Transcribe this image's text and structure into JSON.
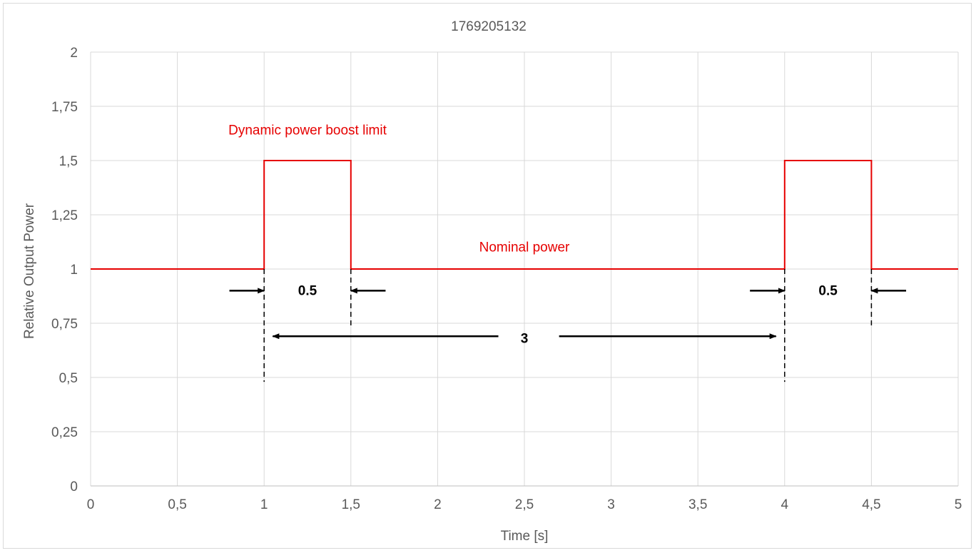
{
  "chart_data": {
    "type": "line",
    "title": "1769205132",
    "xlabel": "Time [s]",
    "ylabel": "Relative Output Power",
    "xlim": [
      0,
      5
    ],
    "ylim": [
      0,
      2
    ],
    "x_ticks": [
      0,
      0.5,
      1,
      1.5,
      2,
      2.5,
      3,
      3.5,
      4,
      4.5,
      5
    ],
    "x_tick_labels": [
      "0",
      "0,5",
      "1",
      "1,5",
      "2",
      "2,5",
      "3",
      "3,5",
      "4",
      "4,5",
      "5"
    ],
    "y_ticks": [
      0,
      0.25,
      0.5,
      0.75,
      1,
      1.25,
      1.5,
      1.75,
      2
    ],
    "y_tick_labels": [
      "0",
      "0,25",
      "0,5",
      "0,75",
      "1",
      "1,25",
      "1,5",
      "1,75",
      "2"
    ],
    "grid": true,
    "series": [
      {
        "color": "#e60000",
        "x": [
          0,
          1,
          1,
          1.5,
          1.5,
          4,
          4,
          4.5,
          4.5,
          5
        ],
        "y": [
          1,
          1,
          1.5,
          1.5,
          1,
          1,
          1.5,
          1.5,
          1,
          1
        ]
      }
    ],
    "annotations": {
      "labels": [
        {
          "text": "Dynamic power boost limit",
          "x": 1.25,
          "y": 1.62,
          "style": "red"
        },
        {
          "text": "Nominal power",
          "x": 2.5,
          "y": 1.08,
          "style": "red"
        },
        {
          "text": "0.5",
          "x": 1.25,
          "y": 0.88,
          "style": "bold"
        },
        {
          "text": "0.5",
          "x": 4.25,
          "y": 0.88,
          "style": "bold"
        },
        {
          "text": "3",
          "x": 2.5,
          "y": 0.66,
          "style": "bold"
        }
      ],
      "dashed_lines": [
        {
          "x": 1,
          "y1": 1,
          "y2": 0.48
        },
        {
          "x": 1.5,
          "y1": 1,
          "y2": 0.74
        },
        {
          "x": 4,
          "y1": 1,
          "y2": 0.48
        },
        {
          "x": 4.5,
          "y1": 1,
          "y2": 0.74
        }
      ],
      "arrows": [
        {
          "from": [
            0.8,
            0.9
          ],
          "to": [
            1.0,
            0.9
          ]
        },
        {
          "from": [
            1.7,
            0.9
          ],
          "to": [
            1.5,
            0.9
          ]
        },
        {
          "from": [
            3.8,
            0.9
          ],
          "to": [
            4.0,
            0.9
          ]
        },
        {
          "from": [
            4.7,
            0.9
          ],
          "to": [
            4.5,
            0.9
          ]
        },
        {
          "from": [
            2.35,
            0.69
          ],
          "to": [
            1.05,
            0.69
          ]
        },
        {
          "from": [
            2.7,
            0.69
          ],
          "to": [
            3.95,
            0.69
          ]
        }
      ]
    }
  }
}
